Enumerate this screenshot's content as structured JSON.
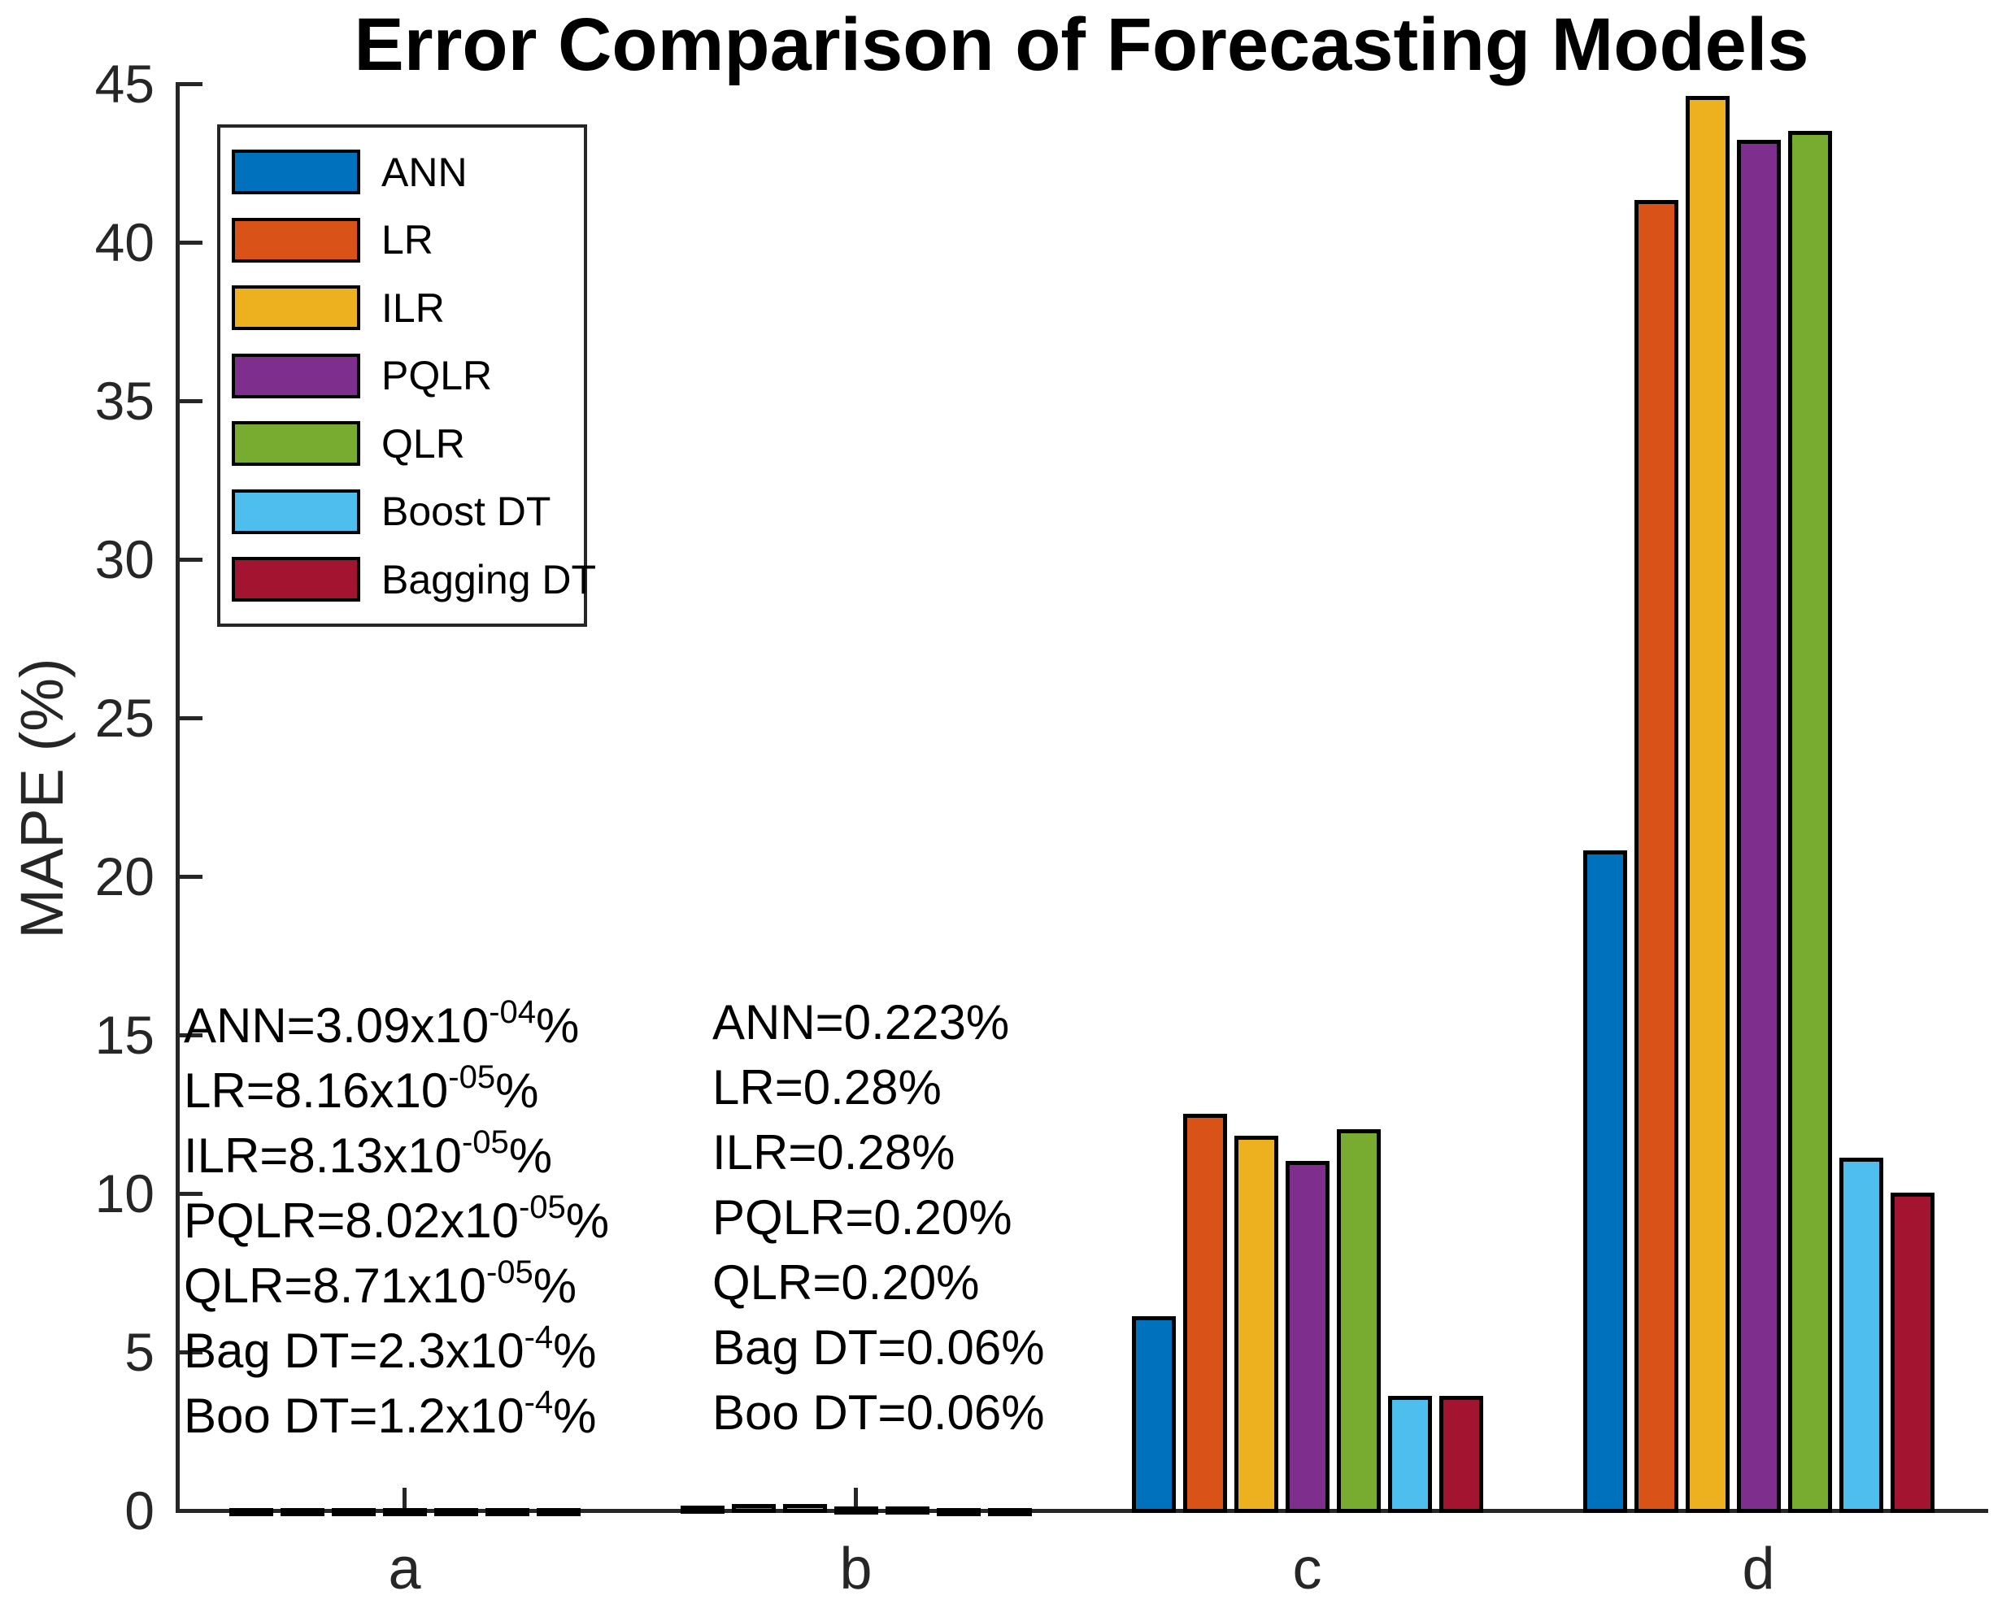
{
  "chart_data": {
    "type": "bar",
    "title": "Error Comparison of Forecasting Models",
    "ylabel": "MAPE (%)",
    "xlabel": "",
    "categories": [
      "a",
      "b",
      "c",
      "d"
    ],
    "ylim": [
      0,
      45
    ],
    "yticks": [
      0,
      5,
      10,
      15,
      20,
      25,
      30,
      35,
      40,
      45
    ],
    "grid": false,
    "legend_position": "inside-top-left",
    "axis_color": "#262626",
    "bar_edge_color": "#000000",
    "series": [
      {
        "name": "ANN",
        "color": "#0072BD",
        "values": [
          0.000309,
          0.223,
          6.2,
          20.9
        ]
      },
      {
        "name": "LR",
        "color": "#D95319",
        "values": [
          8.16e-05,
          0.28,
          12.6,
          41.4
        ]
      },
      {
        "name": "ILR",
        "color": "#EDB120",
        "values": [
          8.13e-05,
          0.28,
          11.9,
          44.7
        ]
      },
      {
        "name": "PQLR",
        "color": "#7E2F8E",
        "values": [
          8.02e-05,
          0.2,
          11.1,
          43.3
        ]
      },
      {
        "name": "QLR",
        "color": "#77AC30",
        "values": [
          8.71e-05,
          0.2,
          12.1,
          43.6
        ]
      },
      {
        "name": "Boost DT",
        "color": "#4DBEEE",
        "values": [
          0.00012,
          0.06,
          3.7,
          11.2
        ]
      },
      {
        "name": "Bagging DT",
        "color": "#A2142F",
        "values": [
          0.00023,
          0.06,
          3.7,
          10.1
        ]
      }
    ],
    "annotations": {
      "left": [
        {
          "base": "ANN=3.09x10",
          "exp": "-04",
          "unit": "%"
        },
        {
          "base": "LR=8.16x10",
          "exp": "-05",
          "unit": "%"
        },
        {
          "base": "ILR=8.13x10",
          "exp": "-05",
          "unit": "%"
        },
        {
          "base": "PQLR=8.02x10",
          "exp": "-05",
          "unit": "%"
        },
        {
          "base": "QLR=8.71x10",
          "exp": "-05",
          "unit": "%"
        },
        {
          "base": "Bag DT=2.3x10",
          "exp": "-4",
          "unit": "%"
        },
        {
          "base": "Boo DT=1.2x10",
          "exp": "-4",
          "unit": "%"
        }
      ],
      "right": [
        {
          "base": "ANN=0.223%",
          "exp": "",
          "unit": ""
        },
        {
          "base": "LR=0.28%",
          "exp": "",
          "unit": ""
        },
        {
          "base": "ILR=0.28%",
          "exp": "",
          "unit": ""
        },
        {
          "base": "PQLR=0.20%",
          "exp": "",
          "unit": ""
        },
        {
          "base": "QLR=0.20%",
          "exp": "",
          "unit": ""
        },
        {
          "base": "Bag DT=0.06%",
          "exp": "",
          "unit": ""
        },
        {
          "base": "Boo DT=0.06%",
          "exp": "",
          "unit": ""
        }
      ]
    }
  }
}
